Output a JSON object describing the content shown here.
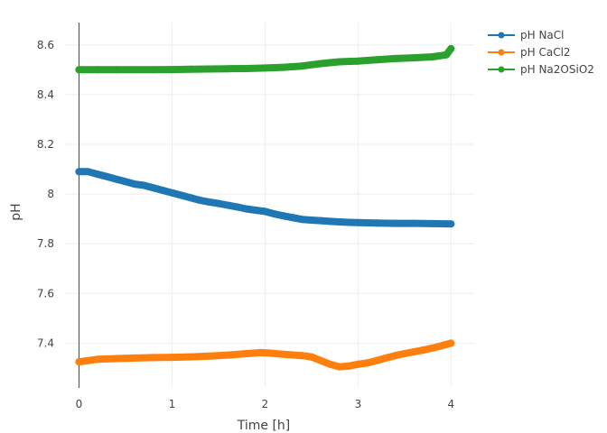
{
  "chart_data": {
    "type": "scatter",
    "xlabel": "Time [h]",
    "ylabel": "pH",
    "xlim": [
      -0.15,
      4.25
    ],
    "ylim": [
      7.22,
      8.69
    ],
    "xticks": [
      0,
      1,
      2,
      3,
      4
    ],
    "xtick_labels": [
      "0",
      "1",
      "2",
      "3",
      "4"
    ],
    "yticks": [
      7.4,
      7.6,
      7.8,
      8.0,
      8.2,
      8.4,
      8.6
    ],
    "ytick_labels": [
      "7.4",
      "7.6",
      "7.8",
      "8",
      "8.2",
      "8.4",
      "8.6"
    ],
    "grid": true,
    "legend_position": "top-right",
    "series": [
      {
        "name": "pH NaCl",
        "color": "#1f77b4",
        "x": [
          0.0,
          0.1,
          0.2,
          0.3,
          0.4,
          0.5,
          0.6,
          0.7,
          0.8,
          0.9,
          1.0,
          1.1,
          1.2,
          1.3,
          1.4,
          1.5,
          1.6,
          1.7,
          1.8,
          1.9,
          2.0,
          2.1,
          2.2,
          2.3,
          2.4,
          2.5,
          2.6,
          2.7,
          2.8,
          2.9,
          3.0,
          3.2,
          3.4,
          3.6,
          3.8,
          4.0
        ],
        "y": [
          8.09,
          8.09,
          8.08,
          8.07,
          8.06,
          8.05,
          8.04,
          8.035,
          8.025,
          8.015,
          8.005,
          7.995,
          7.985,
          7.975,
          7.968,
          7.962,
          7.955,
          7.948,
          7.94,
          7.935,
          7.93,
          7.92,
          7.912,
          7.905,
          7.898,
          7.895,
          7.893,
          7.89,
          7.888,
          7.886,
          7.885,
          7.883,
          7.882,
          7.882,
          7.881,
          7.88
        ]
      },
      {
        "name": "pH CaCl2",
        "color": "#ff7f0e",
        "x": [
          0.0,
          0.1,
          0.2,
          0.4,
          0.6,
          0.8,
          1.0,
          1.2,
          1.4,
          1.6,
          1.8,
          1.95,
          2.05,
          2.2,
          2.4,
          2.5,
          2.6,
          2.7,
          2.8,
          2.9,
          3.0,
          3.1,
          3.2,
          3.3,
          3.4,
          3.5,
          3.6,
          3.7,
          3.8,
          3.9,
          4.0
        ],
        "y": [
          7.325,
          7.33,
          7.335,
          7.338,
          7.34,
          7.342,
          7.343,
          7.345,
          7.348,
          7.352,
          7.358,
          7.362,
          7.36,
          7.355,
          7.35,
          7.345,
          7.33,
          7.315,
          7.305,
          7.308,
          7.315,
          7.32,
          7.33,
          7.34,
          7.35,
          7.358,
          7.365,
          7.372,
          7.38,
          7.39,
          7.4
        ]
      },
      {
        "name": "pH Na2OSiO2",
        "color": "#2ca02c",
        "x": [
          0.0,
          0.2,
          0.4,
          0.6,
          0.8,
          1.0,
          1.2,
          1.4,
          1.6,
          1.8,
          2.0,
          2.2,
          2.4,
          2.5,
          2.6,
          2.8,
          3.0,
          3.2,
          3.4,
          3.6,
          3.8,
          3.95,
          4.0
        ],
        "y": [
          8.5,
          8.5,
          8.5,
          8.5,
          8.5,
          8.501,
          8.502,
          8.503,
          8.504,
          8.505,
          8.507,
          8.51,
          8.515,
          8.52,
          8.525,
          8.532,
          8.535,
          8.54,
          8.545,
          8.548,
          8.552,
          8.56,
          8.585
        ]
      }
    ]
  }
}
